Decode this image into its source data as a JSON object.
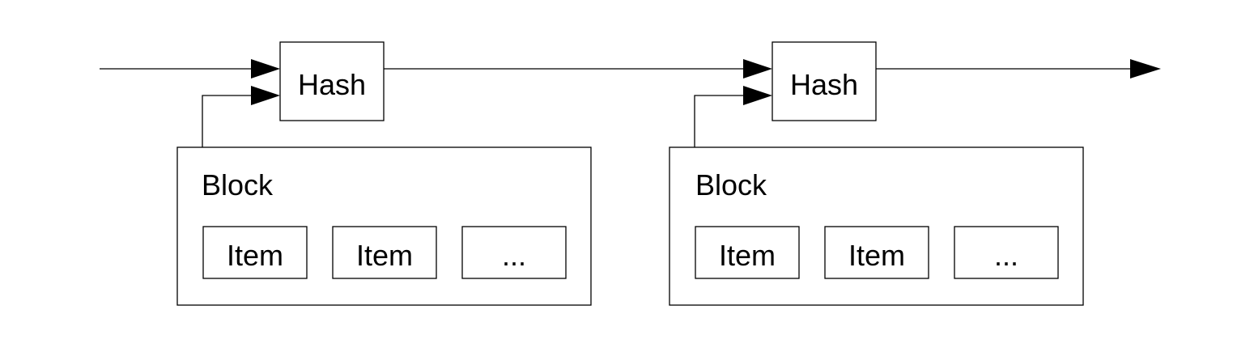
{
  "diagram": {
    "stages": [
      {
        "hash_label": "Hash",
        "block_label": "Block",
        "items": [
          "Item",
          "Item",
          "..."
        ]
      },
      {
        "hash_label": "Hash",
        "block_label": "Block",
        "items": [
          "Item",
          "Item",
          "..."
        ]
      }
    ],
    "colors": {
      "stroke": "#000000",
      "background": "#ffffff"
    }
  }
}
